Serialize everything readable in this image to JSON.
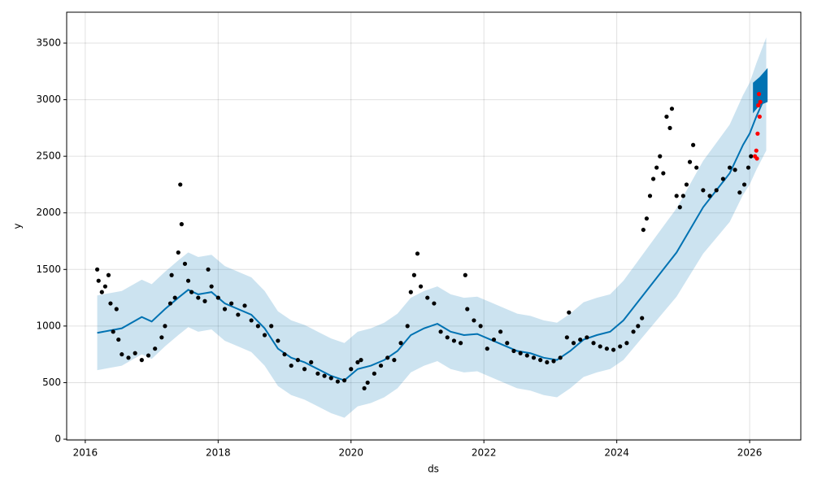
{
  "chart_data": {
    "type": "line",
    "xlabel": "ds",
    "ylabel": "y",
    "xlim": [
      2015.72,
      2026.77
    ],
    "ylim": [
      -7,
      3773
    ],
    "xticks": [
      2016,
      2018,
      2020,
      2022,
      2024,
      2026
    ],
    "yticks": [
      0,
      500,
      1000,
      1500,
      2000,
      2500,
      3000,
      3500
    ],
    "grid": true,
    "band": {
      "color": "#0072B2",
      "x": [
        2016.18,
        2016.55,
        2016.85,
        2017.0,
        2017.2,
        2017.4,
        2017.55,
        2017.7,
        2017.9,
        2018.1,
        2018.3,
        2018.5,
        2018.7,
        2018.9,
        2019.1,
        2019.3,
        2019.5,
        2019.7,
        2019.9,
        2020.1,
        2020.3,
        2020.5,
        2020.7,
        2020.9,
        2021.1,
        2021.3,
        2021.5,
        2021.7,
        2021.9,
        2022.1,
        2022.3,
        2022.5,
        2022.7,
        2022.9,
        2023.1,
        2023.3,
        2023.5,
        2023.7,
        2023.9,
        2024.1,
        2024.3,
        2024.5,
        2024.7,
        2024.9,
        2025.1,
        2025.3,
        2025.5,
        2025.7,
        2025.9,
        2026.0,
        2026.1,
        2026.25
      ],
      "lower": [
        610,
        650,
        750,
        710,
        820,
        920,
        990,
        950,
        970,
        870,
        820,
        770,
        650,
        470,
        390,
        350,
        290,
        230,
        190,
        290,
        320,
        370,
        450,
        590,
        650,
        690,
        620,
        590,
        600,
        550,
        500,
        450,
        430,
        390,
        370,
        450,
        550,
        590,
        620,
        700,
        840,
        980,
        1120,
        1260,
        1450,
        1640,
        1780,
        1920,
        2160,
        2250,
        2380,
        2550
      ],
      "upper": [
        1270,
        1310,
        1410,
        1370,
        1480,
        1580,
        1650,
        1610,
        1630,
        1530,
        1480,
        1430,
        1310,
        1130,
        1050,
        1010,
        950,
        890,
        850,
        950,
        980,
        1030,
        1110,
        1250,
        1310,
        1350,
        1280,
        1250,
        1260,
        1210,
        1160,
        1110,
        1090,
        1050,
        1030,
        1110,
        1210,
        1250,
        1280,
        1400,
        1560,
        1720,
        1880,
        2040,
        2250,
        2460,
        2620,
        2780,
        3040,
        3150,
        3320,
        3550
      ]
    },
    "forecast_band": {
      "color": "#0072B2",
      "x": [
        2026.05,
        2026.15,
        2026.27
      ],
      "lower": [
        2880,
        2950,
        2980
      ],
      "upper": [
        3150,
        3200,
        3280
      ]
    },
    "series": [
      {
        "color": "#0072B2",
        "x": [
          2016.18,
          2016.55,
          2016.85,
          2017.0,
          2017.2,
          2017.4,
          2017.55,
          2017.7,
          2017.9,
          2018.1,
          2018.3,
          2018.5,
          2018.7,
          2018.9,
          2019.1,
          2019.3,
          2019.5,
          2019.7,
          2019.9,
          2020.1,
          2020.3,
          2020.5,
          2020.7,
          2020.9,
          2021.1,
          2021.3,
          2021.5,
          2021.7,
          2021.9,
          2022.1,
          2022.3,
          2022.5,
          2022.7,
          2022.9,
          2023.1,
          2023.3,
          2023.5,
          2023.7,
          2023.9,
          2024.1,
          2024.3,
          2024.5,
          2024.7,
          2024.9,
          2025.1,
          2025.3,
          2025.5,
          2025.7,
          2025.9,
          2026.0,
          2026.1,
          2026.25
        ],
        "values": [
          940,
          980,
          1080,
          1040,
          1150,
          1250,
          1320,
          1280,
          1300,
          1200,
          1150,
          1100,
          980,
          800,
          720,
          680,
          620,
          560,
          520,
          620,
          650,
          700,
          780,
          920,
          980,
          1020,
          950,
          920,
          930,
          880,
          830,
          780,
          760,
          720,
          700,
          780,
          880,
          920,
          950,
          1050,
          1200,
          1350,
          1500,
          1650,
          1850,
          2050,
          2200,
          2350,
          2600,
          2700,
          2850,
          3050
        ]
      }
    ],
    "points": [
      {
        "color": "#000000",
        "x": [
          2016.18,
          2016.2,
          2016.25,
          2016.3,
          2016.35,
          2016.38,
          2016.42,
          2016.47,
          2016.5,
          2016.55,
          2016.65,
          2016.75,
          2016.85,
          2016.95,
          2017.05,
          2017.15,
          2017.2,
          2017.28,
          2017.3,
          2017.35,
          2017.4,
          2017.43,
          2017.45,
          2017.5,
          2017.55,
          2017.6,
          2017.7,
          2017.8,
          2017.85,
          2017.9,
          2018.0,
          2018.1,
          2018.2,
          2018.3,
          2018.4,
          2018.5,
          2018.6,
          2018.7,
          2018.8,
          2018.9,
          2019.0,
          2019.1,
          2019.2,
          2019.3,
          2019.4,
          2019.5,
          2019.6,
          2019.7,
          2019.8,
          2019.9,
          2020.0,
          2020.1,
          2020.15,
          2020.2,
          2020.25,
          2020.35,
          2020.45,
          2020.55,
          2020.65,
          2020.75,
          2020.85,
          2020.9,
          2020.95,
          2021.0,
          2021.05,
          2021.15,
          2021.25,
          2021.35,
          2021.45,
          2021.55,
          2021.65,
          2021.72,
          2021.75,
          2021.85,
          2021.95,
          2022.05,
          2022.15,
          2022.25,
          2022.35,
          2022.45,
          2022.55,
          2022.65,
          2022.75,
          2022.85,
          2022.95,
          2023.05,
          2023.15,
          2023.25,
          2023.28,
          2023.35,
          2023.45,
          2023.55,
          2023.65,
          2023.75,
          2023.85,
          2023.95,
          2024.05,
          2024.15,
          2024.25,
          2024.32,
          2024.38,
          2024.4,
          2024.45,
          2024.5,
          2024.55,
          2024.6,
          2024.65,
          2024.7,
          2024.75,
          2024.8,
          2024.83,
          2024.9,
          2024.95,
          2025.0,
          2025.05,
          2025.1,
          2025.15,
          2025.2,
          2025.3,
          2025.4,
          2025.5,
          2025.6,
          2025.7,
          2025.78,
          2025.85,
          2025.92,
          2025.98,
          2026.02
        ],
        "values": [
          1500,
          1400,
          1300,
          1350,
          1450,
          1200,
          950,
          1150,
          880,
          750,
          720,
          760,
          700,
          740,
          800,
          900,
          1000,
          1200,
          1450,
          1250,
          1650,
          2250,
          1900,
          1550,
          1400,
          1300,
          1250,
          1220,
          1500,
          1350,
          1250,
          1150,
          1200,
          1100,
          1180,
          1050,
          1000,
          920,
          1000,
          870,
          750,
          650,
          700,
          620,
          680,
          580,
          560,
          540,
          510,
          520,
          620,
          680,
          700,
          450,
          500,
          580,
          650,
          720,
          700,
          850,
          1000,
          1300,
          1450,
          1640,
          1350,
          1250,
          1200,
          950,
          900,
          870,
          850,
          1450,
          1150,
          1050,
          1000,
          800,
          880,
          950,
          850,
          780,
          760,
          740,
          720,
          700,
          680,
          690,
          720,
          900,
          1120,
          850,
          880,
          900,
          850,
          820,
          800,
          790,
          820,
          850,
          950,
          1000,
          1070,
          1850,
          1950,
          2150,
          2300,
          2400,
          2500,
          2350,
          2850,
          2750,
          2920,
          2150,
          2050,
          2150,
          2250,
          2450,
          2600,
          2400,
          2200,
          2150,
          2200,
          2300,
          2400,
          2380,
          2180,
          2250,
          2400,
          2500
        ]
      },
      {
        "color": "#ff0000",
        "x": [
          2026.08,
          2026.1,
          2026.11,
          2026.12,
          2026.13,
          2026.14,
          2026.15,
          2026.16
        ],
        "values": [
          2500,
          2550,
          2480,
          2700,
          2950,
          3050,
          2850,
          2980
        ]
      }
    ]
  }
}
